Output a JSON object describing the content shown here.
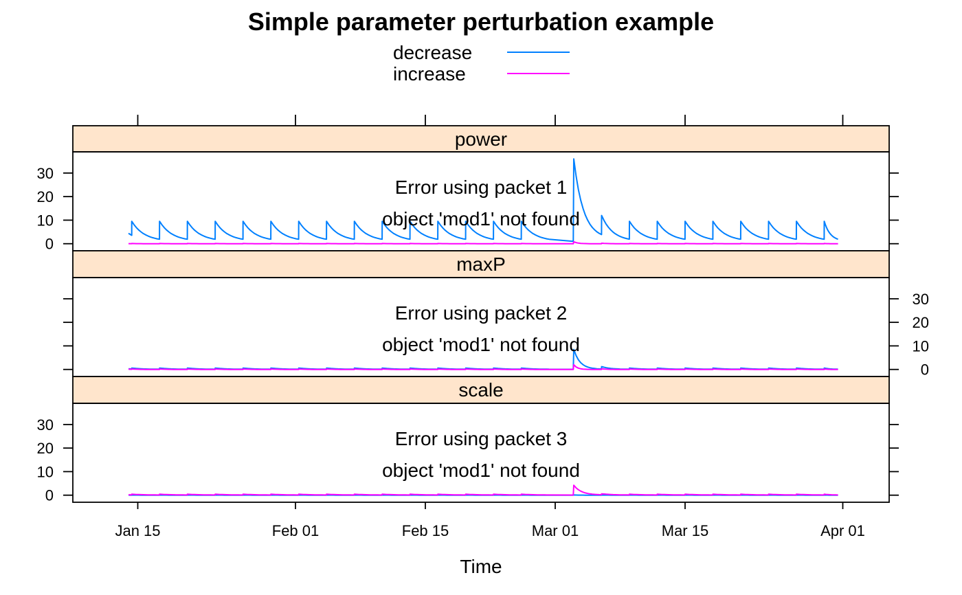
{
  "chart_data": {
    "type": "line",
    "title": "Simple parameter perturbation example",
    "xlabel": "Time",
    "ylabel": "",
    "x_ticks": [
      "Jan 15",
      "Feb 01",
      "Feb 15",
      "Mar 01",
      "Mar 15",
      "Apr 01"
    ],
    "x_range": [
      "Jan 08",
      "Apr 06"
    ],
    "y_ticks": [
      0,
      10,
      20,
      30
    ],
    "ylim": [
      -3,
      39
    ],
    "grid": false,
    "legend": {
      "position": "top",
      "entries": [
        {
          "label": "decrease",
          "color": "#0080ff"
        },
        {
          "label": "increase",
          "color": "#ff00ff"
        }
      ]
    },
    "pulse_interval_days": 3,
    "panels": [
      {
        "strip": "power",
        "message_line1": "Error using packet 1",
        "message_line2": "object 'mod1' not found",
        "y_axis_side": "left",
        "series": [
          {
            "name": "decrease",
            "baseline_peak": 9.5,
            "baseline_trough": 1,
            "event_peak": 36,
            "event_second_peak": 12
          },
          {
            "name": "increase",
            "baseline_peak": 0.1,
            "baseline_trough": 0,
            "event_peak": 0.8,
            "event_second_peak": 0.2
          }
        ]
      },
      {
        "strip": "maxP",
        "message_line1": "Error using packet 2",
        "message_line2": "object 'mod1' not found",
        "y_axis_side": "right",
        "series": [
          {
            "name": "decrease",
            "baseline_peak": 0.6,
            "baseline_trough": 0.05,
            "event_peak": 8.5,
            "event_second_peak": 1.2
          },
          {
            "name": "increase",
            "baseline_peak": 0.2,
            "baseline_trough": 0,
            "event_peak": 2,
            "event_second_peak": 0.3
          }
        ]
      },
      {
        "strip": "scale",
        "message_line1": "Error using packet 3",
        "message_line2": "object 'mod1' not found",
        "y_axis_side": "left",
        "series": [
          {
            "name": "decrease",
            "baseline_peak": 0.05,
            "baseline_trough": 0,
            "event_peak": 0.1,
            "event_second_peak": 0.05
          },
          {
            "name": "increase",
            "baseline_peak": 0.4,
            "baseline_trough": 0.05,
            "event_peak": 4.2,
            "event_second_peak": 0.6
          }
        ]
      }
    ]
  }
}
